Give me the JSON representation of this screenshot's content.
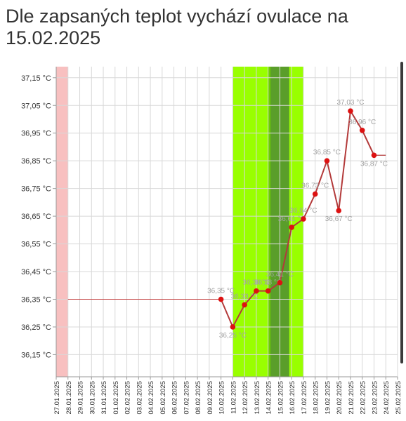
{
  "title": "Dle zapsaných teplot vychází ovulace na 15.02.2025",
  "chart_data": {
    "type": "line",
    "x": [
      "27.01.2025",
      "28.01.2025",
      "29.01.2025",
      "30.01.2025",
      "31.01.2025",
      "01.02.2025",
      "02.02.2025",
      "03.02.2025",
      "04.02.2025",
      "05.02.2025",
      "06.02.2025",
      "07.02.2025",
      "08.02.2025",
      "09.02.2025",
      "10.02.2025",
      "11.02.2025",
      "12.02.2025",
      "13.02.2025",
      "14.02.2025",
      "15.02.2025",
      "16.02.2025",
      "17.02.2025",
      "18.02.2025",
      "19.02.2025",
      "20.02.2025",
      "21.02.2025",
      "22.02.2025",
      "23.02.2025",
      "24.02.2025",
      "25.02.2025"
    ],
    "y_ticks": [
      "36,15 °C",
      "36,25 °C",
      "36,35 °C",
      "36,45 °C",
      "36,55 °C",
      "36,65 °C",
      "36,75 °C",
      "36,85 °C",
      "36,95 °C",
      "37,05 °C",
      "37,15 °C"
    ],
    "ylim": [
      36.07,
      37.19
    ],
    "baseline": {
      "from": "28.01.2025",
      "to": "10.02.2025",
      "value": 36.35
    },
    "tail": {
      "from": "23.02.2025",
      "to": "24.02.2025",
      "value": 36.87
    },
    "series": [
      {
        "points": [
          {
            "x": "10.02.2025",
            "y": 36.35,
            "label": "36,35 °C"
          },
          {
            "x": "11.02.2025",
            "y": 36.25,
            "label": "36,25 °C"
          },
          {
            "x": "12.02.2025",
            "y": 36.33,
            "label": "36,33 °C"
          },
          {
            "x": "13.02.2025",
            "y": 36.38,
            "label": "36,38 °C"
          },
          {
            "x": "14.02.2025",
            "y": 36.38,
            "label": "36,38 °C"
          },
          {
            "x": "15.02.2025",
            "y": 36.41,
            "label": "36,41 °C"
          },
          {
            "x": "16.02.2025",
            "y": 36.61,
            "label": "36,61 °C"
          },
          {
            "x": "17.02.2025",
            "y": 36.64,
            "label": "36,64 °C"
          },
          {
            "x": "18.02.2025",
            "y": 36.73,
            "label": "36,73 °C"
          },
          {
            "x": "19.02.2025",
            "y": 36.85,
            "label": "36,85 °C"
          },
          {
            "x": "20.02.2025",
            "y": 36.67,
            "label": "36,67 °C"
          },
          {
            "x": "21.02.2025",
            "y": 37.03,
            "label": "37,03 °C"
          },
          {
            "x": "22.02.2025",
            "y": 36.96,
            "label": "36,96 °C"
          },
          {
            "x": "23.02.2025",
            "y": 36.87,
            "label": "36,87 °C"
          }
        ]
      }
    ],
    "bands": [
      {
        "from": "27.01.2025",
        "to": "28.01.2025",
        "color": "#f8c0c0",
        "name": "period"
      },
      {
        "from": "11.02.2025",
        "to": "17.02.2025",
        "color": "#99ff00",
        "name": "fertile-window"
      },
      {
        "from": "14.02.2025",
        "to": "15.02.2025",
        "color": "#6ccf00",
        "name": "peak-fertility"
      },
      {
        "from": "14.02.2025",
        "to": "16.02.2025",
        "color": "#5a9e2a",
        "name": "ovulation-day",
        "inset": true
      }
    ],
    "colors": {
      "line": "#b33a3a",
      "point": "#dd1111",
      "label": "#a3a3a3",
      "grid": "#d8d8d8",
      "axis": "#9a9a9a",
      "baseline": "#c44444"
    }
  }
}
